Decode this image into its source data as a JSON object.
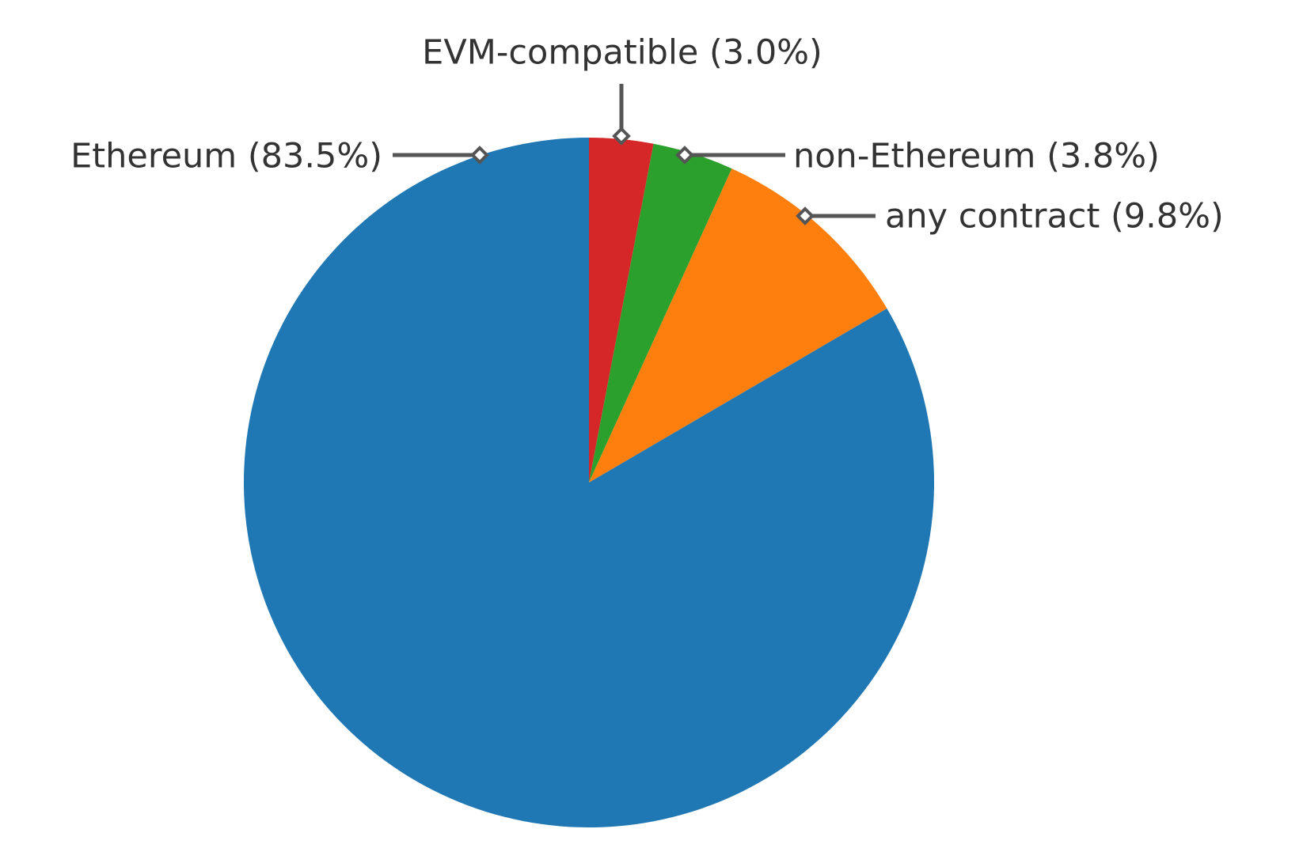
{
  "chart_data": {
    "type": "pie",
    "categories": [
      "EVM-compatible (3.0%)",
      "non-Ethereum (3.8%)",
      "any contract (9.8%)",
      "Ethereum (83.5%)"
    ],
    "values": [
      3.0,
      3.8,
      9.8,
      83.5
    ],
    "colors": [
      "#d62728",
      "#2ca02c",
      "#ff7f0e",
      "#1f77b4"
    ]
  }
}
